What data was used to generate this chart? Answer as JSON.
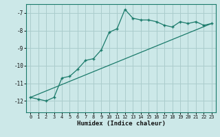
{
  "xlabel": "Humidex (Indice chaleur)",
  "bg_color": "#cce8e8",
  "grid_color": "#aacccc",
  "line_color": "#1a7a6a",
  "xlim": [
    -0.5,
    23.5
  ],
  "ylim": [
    -12.65,
    -6.5
  ],
  "yticks": [
    -12,
    -11,
    -10,
    -9,
    -8,
    -7
  ],
  "xticks": [
    0,
    1,
    2,
    3,
    4,
    5,
    6,
    7,
    8,
    9,
    10,
    11,
    12,
    13,
    14,
    15,
    16,
    17,
    18,
    19,
    20,
    21,
    22,
    23
  ],
  "line1_x": [
    0,
    1,
    2,
    3,
    4,
    5,
    6,
    7,
    8,
    9,
    10,
    11,
    12,
    13,
    14,
    15,
    16,
    17,
    18,
    19,
    20,
    21,
    22,
    23
  ],
  "line1_y": [
    -11.8,
    -11.9,
    -12.0,
    -11.8,
    -10.7,
    -10.6,
    -10.2,
    -9.7,
    -9.6,
    -9.1,
    -8.1,
    -7.9,
    -6.8,
    -7.3,
    -7.4,
    -7.4,
    -7.5,
    -7.7,
    -7.8,
    -7.5,
    -7.6,
    -7.5,
    -7.7,
    -7.6
  ],
  "line2_x": [
    0,
    23
  ],
  "line2_y": [
    -11.8,
    -7.6
  ]
}
